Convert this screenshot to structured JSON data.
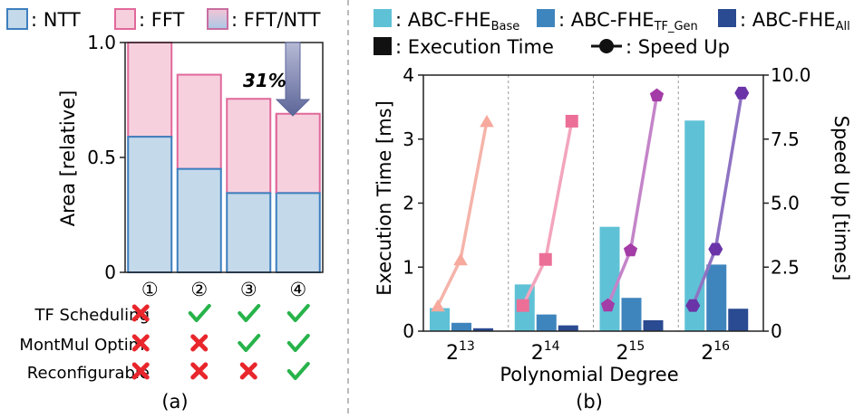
{
  "chart_data": [
    {
      "panel": "(a)",
      "type": "bar",
      "stacked": true,
      "ylabel": "Area [relative]",
      "ylim": [
        0,
        1.0
      ],
      "yticks": [
        "0",
        "0.5",
        "1.0"
      ],
      "legend": [
        "NTT",
        "FFT",
        "FFT/NTT"
      ],
      "categories": [
        "①",
        "②",
        "③",
        "④"
      ],
      "series": [
        {
          "name": "NTT",
          "values": [
            0.59,
            0.45,
            0.345,
            0.345
          ]
        },
        {
          "name": "FFT",
          "values": [
            0.41,
            0.41,
            0.41,
            0.345
          ]
        }
      ],
      "annotation": "31%",
      "features": [
        {
          "label": "TF Scheduling",
          "marks": [
            "x",
            "check",
            "check",
            "check"
          ]
        },
        {
          "label": "MontMul Optim.",
          "marks": [
            "x",
            "x",
            "check",
            "check"
          ]
        },
        {
          "label": "Reconfigurable",
          "marks": [
            "x",
            "x",
            "x",
            "check"
          ]
        }
      ]
    },
    {
      "panel": "(b)",
      "type": "bar",
      "xlabel": "Polynomial Degree",
      "ylabel": "Execution Time [ms]",
      "y2label": "Speed Up [times]",
      "ylim": [
        0,
        4
      ],
      "y2lim": [
        0,
        10
      ],
      "yticks": [
        "0",
        "1",
        "2",
        "3",
        "4"
      ],
      "y2ticks": [
        "0",
        "2.5",
        "5.0",
        "7.5",
        "10.0"
      ],
      "categories": [
        {
          "base": "2",
          "exp": "13"
        },
        {
          "base": "2",
          "exp": "14"
        },
        {
          "base": "2",
          "exp": "15"
        },
        {
          "base": "2",
          "exp": "16"
        }
      ],
      "legend": [
        {
          "text": "ABC-FHE",
          "sub": "Base"
        },
        {
          "text": "ABC-FHE",
          "sub": "TF_Gen"
        },
        {
          "text": "ABC-FHE",
          "sub": "All"
        },
        {
          "text": "Execution Time",
          "sub": ""
        },
        {
          "text": "Speed Up",
          "sub": ""
        }
      ],
      "series": [
        {
          "name": "ABC-FHE_Base",
          "values": [
            0.36,
            0.73,
            1.63,
            3.29
          ]
        },
        {
          "name": "ABC-FHE_TF_Gen",
          "values": [
            0.13,
            0.26,
            0.52,
            1.04
          ]
        },
        {
          "name": "ABC-FHE_All",
          "values": [
            0.045,
            0.09,
            0.17,
            0.35
          ]
        }
      ],
      "speedup": [
        [
          1.0,
          2.8,
          8.2
        ],
        [
          1.0,
          2.8,
          8.2
        ],
        [
          1.0,
          3.15,
          9.2
        ],
        [
          1.0,
          3.2,
          9.3
        ]
      ]
    }
  ],
  "colors": {
    "ntt_fill": "#c4d9ea",
    "ntt_edge": "#3d7fbf",
    "fft_fill": "#f7d0de",
    "fft_edge": "#e0699a",
    "base": "#5fc1d6",
    "tfgen": "#3f85bd",
    "all": "#2a4a91",
    "line13": "#f5b4aa",
    "line14": "#f3a5bd",
    "line15": "#c484c9",
    "line16": "#8f73c3",
    "mark13": "#f6a99c",
    "mark14": "#ec6f97",
    "mark15": "#a43ca7",
    "mark16": "#6a34a8",
    "arrow": "#6b73a3",
    "cross": "#e8262c",
    "check": "#27b34a",
    "axis": "#222222"
  }
}
